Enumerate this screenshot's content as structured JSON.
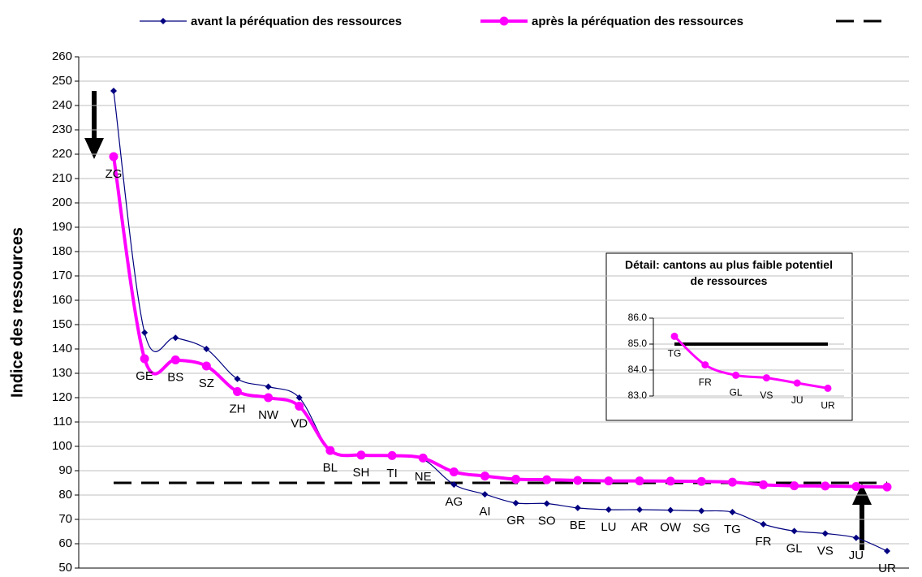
{
  "chart_data": [
    {
      "type": "line",
      "y_label": "Indice des ressources",
      "categories": [
        "ZG",
        "GE",
        "BS",
        "SZ",
        "ZH",
        "NW",
        "VD",
        "BL",
        "SH",
        "TI",
        "NE",
        "AG",
        "AI",
        "GR",
        "SO",
        "BE",
        "LU",
        "AR",
        "OW",
        "SG",
        "TG",
        "FR",
        "GL",
        "VS",
        "JU",
        "UR"
      ],
      "series": [
        {
          "name": "avant la péréquation des ressources",
          "color": "#000080",
          "marker": "diamond",
          "values": [
            246,
            146.7,
            144.6,
            140,
            127.7,
            124.5,
            120,
            98.3,
            96.5,
            96,
            94.7,
            84.3,
            80.3,
            76.7,
            76.5,
            74.7,
            74,
            74,
            73.8,
            73.5,
            73,
            68,
            65.2,
            64.2,
            62.4,
            57
          ]
        },
        {
          "name": "après la péréquation des ressources",
          "color": "#ff00ff",
          "marker": "circle",
          "values": [
            219,
            136,
            135.5,
            133,
            122.5,
            120,
            116.5,
            98.3,
            96.4,
            96.2,
            95.2,
            89.5,
            87.8,
            86.5,
            86.3,
            86,
            85.8,
            85.8,
            85.7,
            85.6,
            85.3,
            84.2,
            83.8,
            83.7,
            83.5,
            83.3
          ]
        }
      ],
      "reference_line": {
        "value": 85,
        "color": "#000000",
        "dashed": true
      },
      "ylim": [
        50,
        260
      ],
      "yticks": [
        50,
        60,
        70,
        80,
        90,
        100,
        110,
        120,
        130,
        140,
        150,
        160,
        170,
        180,
        190,
        200,
        210,
        220,
        230,
        240,
        250,
        260
      ],
      "grid": true
    },
    {
      "type": "line",
      "title": "Détail: cantons au plus faible potentiel de ressources",
      "categories": [
        "TG",
        "FR",
        "GL",
        "VS",
        "JU",
        "UR"
      ],
      "series": [
        {
          "color": "#ff00ff",
          "marker": "circle",
          "values": [
            85.3,
            84.2,
            83.8,
            83.7,
            83.5,
            83.3
          ]
        }
      ],
      "reference_line": {
        "value": 85,
        "color": "#000000",
        "dashed": false
      },
      "ylim": [
        83,
        86
      ],
      "yticks": [
        {
          "value": 83,
          "label": "83.0"
        },
        {
          "value": 84,
          "label": "84.0"
        },
        {
          "value": 85,
          "label": "85.0"
        },
        {
          "value": 86,
          "label": "86.0"
        }
      ],
      "grid": true
    }
  ]
}
